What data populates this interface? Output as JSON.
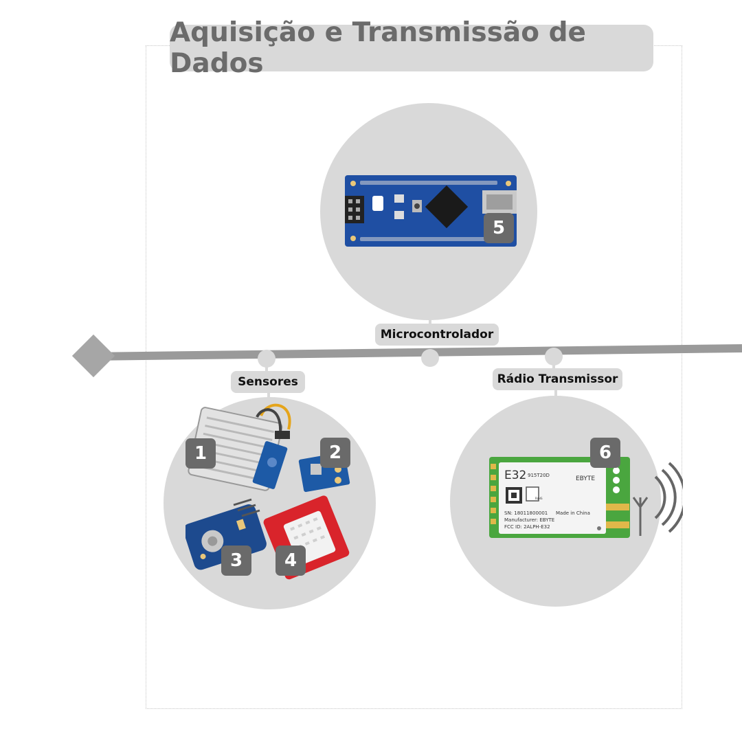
{
  "title": "Aquisição e Transmissão de Dados",
  "nodes": {
    "sensors": {
      "label": "Sensores"
    },
    "micro": {
      "label": "Microcontrolador"
    },
    "radio": {
      "label": "Rádio Transmissor"
    }
  },
  "badges": [
    "1",
    "2",
    "3",
    "4",
    "5",
    "6"
  ],
  "module_print": {
    "model": "E32",
    "variant": "915T20D",
    "brand": "EBYTE",
    "sn": "SN: 18011800001",
    "made": "Made in China",
    "manufacturer": "Manufacturer: EBYTE",
    "fcc": "FCC ID: 2ALPH-E32",
    "rohs": "RoHS"
  },
  "colors": {
    "timeline": "#9a9a9a",
    "circle": "#d9d9d9",
    "badge": "#6a6a6a",
    "title_text": "#6b6b6b",
    "arduino_board": "#1f4fa3",
    "sensor_red": "#d9242b",
    "sensor_blue": "#1d5aa6"
  },
  "icons": [
    "diamond-start-icon",
    "radio-waves-icon",
    "antenna-icon"
  ]
}
